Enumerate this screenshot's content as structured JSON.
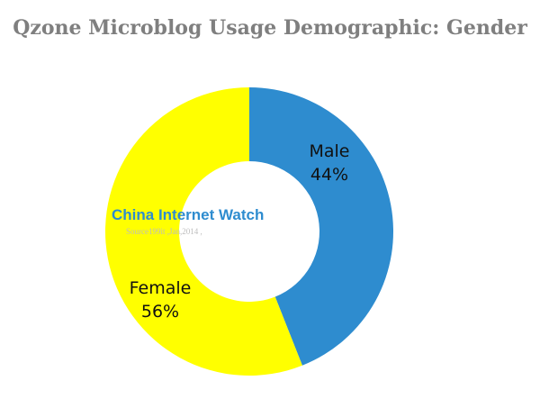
{
  "chart_data": {
    "type": "pie",
    "title": "Qzone Microblog Usage Demographic: Gender",
    "donut": true,
    "slices": [
      {
        "label": "Male",
        "value": 44,
        "value_label": "44%",
        "color": "#2e8ccf"
      },
      {
        "label": "Female",
        "value": 56,
        "value_label": "56%",
        "color": "#ffff00"
      }
    ],
    "start_angle_deg": 0,
    "direction": "clockwise"
  },
  "watermark": {
    "title": "China Internet Watch",
    "source": "Source199it ,Jan,2014 ,"
  }
}
